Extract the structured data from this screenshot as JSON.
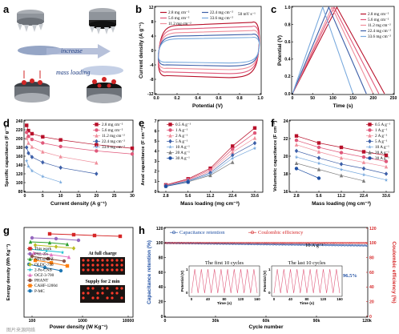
{
  "panels": {
    "a": "a",
    "b": "b",
    "c": "c",
    "d": "d",
    "e": "e",
    "f": "f",
    "g": "g",
    "h": "h"
  },
  "schematic": {
    "increase": "increase",
    "mass_loading": "mass loading"
  },
  "inset_g": {
    "full_charge": "At full charge",
    "supply": "Supply for 2 min"
  },
  "watermark": "图片来源网络",
  "colors": {
    "c1": "#b8102a",
    "c2": "#e0587a",
    "c3": "#ef8e9b",
    "c4": "#3d5fa8",
    "c5": "#78a9dd",
    "c6": "#7d7d7d",
    "c7": "#1f4fa3"
  },
  "chart_data": [
    {
      "panel": "b",
      "type": "line",
      "xlabel": "Potential (V)",
      "ylabel": "Current density (A g⁻¹)",
      "xlim": [
        0,
        1
      ],
      "ylim": [
        -12,
        12
      ],
      "xticks": [
        "0.0",
        "0.2",
        "0.4",
        "0.6",
        "0.8",
        "1.0"
      ],
      "yticks": [
        "-12",
        "-8",
        "-4",
        "0",
        "4",
        "8",
        "12"
      ],
      "annotation": "50 mV s⁻¹",
      "series": [
        {
          "name": "2.8 mg cm⁻²",
          "color": "#b8102a",
          "half_height": 8.2
        },
        {
          "name": "5.6 mg cm⁻²",
          "color": "#e0587a",
          "half_height": 7.0
        },
        {
          "name": "11.2 mg cm⁻²",
          "color": "#ef8e9b",
          "half_height": 5.8
        },
        {
          "name": "22.4 mg cm⁻²",
          "color": "#3d5fa8",
          "half_height": 4.7
        },
        {
          "name": "33.6 mg cm⁻²",
          "color": "#78a9dd",
          "half_height": 3.8
        }
      ]
    },
    {
      "panel": "c",
      "type": "line",
      "xlabel": "Time (s)",
      "ylabel": "Potential (V)",
      "xlim": [
        0,
        250
      ],
      "ylim": [
        0,
        1.0
      ],
      "xticks": [
        "0",
        "50",
        "100",
        "150",
        "200",
        "250"
      ],
      "yticks": [
        "0.0",
        "0.2",
        "0.4",
        "0.6",
        "0.8",
        "1.0"
      ],
      "series": [
        {
          "name": "2.8 mg cm⁻²",
          "color": "#b8102a",
          "peak": 110,
          "end": 228
        },
        {
          "name": "5.6 mg cm⁻²",
          "color": "#e0587a",
          "peak": 103,
          "end": 214
        },
        {
          "name": "11.2 mg cm⁻²",
          "color": "#ef8e9b",
          "peak": 98,
          "end": 200
        },
        {
          "name": "22.4 mg cm⁻²",
          "color": "#3d5fa8",
          "peak": 90,
          "end": 183
        },
        {
          "name": "33.6 mg cm⁻²",
          "color": "#78a9dd",
          "peak": 75,
          "end": 150
        }
      ]
    },
    {
      "panel": "d",
      "type": "line",
      "xlabel": "Current density (A g⁻¹)",
      "ylabel": "Specific capacitance (F g⁻¹)",
      "xlim": [
        0,
        30
      ],
      "ylim": [
        80,
        240
      ],
      "xticks": [
        "0",
        "5",
        "10",
        "15",
        "20",
        "25",
        "30"
      ],
      "yticks": [
        "80",
        "100",
        "120",
        "140",
        "160",
        "180",
        "200",
        "220",
        "240"
      ],
      "series": [
        {
          "name": "2.8 mg cm⁻²",
          "color": "#b8102a",
          "x": [
            0.5,
            1,
            2,
            5,
            10,
            20,
            30
          ],
          "values": [
            230,
            218,
            211,
            204,
            197,
            186,
            178
          ]
        },
        {
          "name": "5.6 mg cm⁻²",
          "color": "#e0587a",
          "x": [
            0.5,
            1,
            2,
            5,
            10,
            20,
            30
          ],
          "values": [
            214,
            205,
            198,
            190,
            182,
            172,
            165
          ]
        },
        {
          "name": "11.2 mg cm⁻²",
          "color": "#ef8e9b",
          "x": [
            0.5,
            1,
            2,
            5,
            10,
            20
          ],
          "values": [
            201,
            190,
            181,
            170,
            159,
            145
          ]
        },
        {
          "name": "22.4 mg cm⁻²",
          "color": "#3d5fa8",
          "x": [
            0.5,
            1,
            2,
            5,
            10,
            20
          ],
          "values": [
            180,
            167,
            158,
            146,
            134,
            120
          ]
        },
        {
          "name": "33.6 mg cm⁻²",
          "color": "#78a9dd",
          "x": [
            0.5,
            1,
            2,
            5,
            10
          ],
          "values": [
            150,
            137,
            127,
            114,
            101
          ]
        }
      ]
    },
    {
      "panel": "e",
      "type": "line",
      "xlabel": "Mass loading (mg cm⁻²)",
      "ylabel": "Areal capacitance (F cm⁻²)",
      "categories": [
        "2.8",
        "5.6",
        "11.2",
        "22.4",
        "33.6"
      ],
      "ylim": [
        0,
        7
      ],
      "yticks": [
        "0",
        "1",
        "2",
        "3",
        "4",
        "5",
        "6",
        "7"
      ],
      "series": [
        {
          "name": "0.5 A g⁻¹",
          "color": "#b8102a",
          "values": [
            0.65,
            1.25,
            2.3,
            4.5,
            6.3
          ]
        },
        {
          "name": "1 A g⁻¹",
          "color": "#e0587a",
          "values": [
            0.61,
            1.18,
            2.15,
            4.2,
            5.8
          ]
        },
        {
          "name": "2 A g⁻¹",
          "color": "#ef8e9b",
          "values": [
            0.59,
            1.12,
            2.0,
            3.9,
            5.3
          ]
        },
        {
          "name": "5 A g⁻¹",
          "color": "#3d5fa8",
          "values": [
            0.57,
            1.05,
            1.85,
            3.6,
            4.8
          ]
        },
        {
          "name": "10 A g⁻¹",
          "color": "#78a9dd",
          "values": [
            0.55,
            1.0,
            1.7,
            3.3,
            4.3
          ]
        },
        {
          "name": "20 A g⁻¹",
          "color": "#7d7d7d",
          "values": [
            0.52,
            0.95,
            1.6,
            2.9,
            null
          ]
        },
        {
          "name": "30 A g⁻¹",
          "color": "#1f4fa3",
          "values": [
            0.5,
            0.92,
            null,
            null,
            null
          ]
        }
      ]
    },
    {
      "panel": "f",
      "type": "line",
      "xlabel": "Mass loading (mg cm⁻²)",
      "ylabel": "Volumetric capacitance (F cm⁻³)",
      "categories": [
        "2.8",
        "5.6",
        "11.2",
        "22.4",
        "33.6"
      ],
      "ylim": [
        16,
        24
      ],
      "yticks": [
        "16",
        "18",
        "20",
        "22",
        "24"
      ],
      "series": [
        {
          "name": "0.5 A g⁻¹",
          "color": "#b8102a",
          "values": [
            22.3,
            21.5,
            21.0,
            20.5,
            20.1
          ]
        },
        {
          "name": "1 A g⁻¹",
          "color": "#e0587a",
          "values": [
            21.8,
            21.0,
            20.4,
            19.9,
            19.4
          ]
        },
        {
          "name": "2 A g⁻¹",
          "color": "#ef8e9b",
          "values": [
            21.3,
            20.5,
            19.8,
            19.3,
            18.8
          ]
        },
        {
          "name": "5 A g⁻¹",
          "color": "#3d5fa8",
          "values": [
            20.6,
            19.8,
            19.1,
            18.6,
            18.0
          ]
        },
        {
          "name": "10 A g⁻¹",
          "color": "#78a9dd",
          "values": [
            19.9,
            19.2,
            18.5,
            17.9,
            17.3
          ]
        },
        {
          "name": "20 A g⁻¹",
          "color": "#7d7d7d",
          "values": [
            19.2,
            18.5,
            17.8,
            17.2,
            null
          ]
        },
        {
          "name": "30 A g⁻¹",
          "color": "#1f4fa3",
          "values": [
            18.6,
            17.5,
            null,
            null,
            null
          ]
        }
      ]
    },
    {
      "panel": "g",
      "type": "line",
      "xlabel": "Power density (W Kg⁻¹)",
      "ylabel": "Energy density (Wh Kg⁻¹)",
      "xscale": "log",
      "xticks": [
        "100",
        "1000",
        "10000"
      ],
      "series": [
        {
          "name": "This work",
          "color": "#d62728"
        },
        {
          "name": "PAL-Zn",
          "color": "#9467bd"
        },
        {
          "name": "NPC@PPZ",
          "color": "#2ca02c"
        },
        {
          "name": "OLDC-750",
          "color": "#bcbd22"
        },
        {
          "name": "2-Fe-CNB",
          "color": "#17becf"
        },
        {
          "name": "OCZ-3-700",
          "color": "#e377c2"
        },
        {
          "name": "PHANT",
          "color": "#8c564b"
        },
        {
          "name": "CAHF-1200d",
          "color": "#ff7f0e"
        },
        {
          "name": "P-MC",
          "color": "#1f77b4"
        }
      ]
    },
    {
      "panel": "h",
      "type": "scatter",
      "xlabel": "Cycle number",
      "ylabel": "Capacitance retention (%)",
      "y2label": "Coulombic efficiency (%)",
      "xlim": [
        0,
        120000
      ],
      "ylim": [
        0,
        120
      ],
      "xticks": [
        "0",
        "30k",
        "60k",
        "90k",
        "120k"
      ],
      "yticks": [
        "0",
        "20",
        "40",
        "60",
        "80",
        "100",
        "120"
      ],
      "y2ticks": [
        "0",
        "20",
        "40",
        "60",
        "80",
        "100",
        "120"
      ],
      "series": [
        {
          "name": "Capacitance retention",
          "color": "#1f4fa3",
          "start": 100,
          "end": 96.5
        },
        {
          "name": "Coulombic efficiency",
          "color": "#d62728",
          "value": 100
        }
      ],
      "annotations": [
        "10 A g⁻¹",
        "96.5%"
      ],
      "insets": [
        {
          "title": "The first 10 cycles",
          "xlabel": "Time (s)",
          "ylabel": "Potential (V)",
          "xticks": [
            "0",
            "40",
            "80",
            "120",
            "160"
          ],
          "yticks": [
            "0",
            "1"
          ]
        },
        {
          "title": "The last 10 cycles",
          "xlabel": "Time (s)",
          "ylabel": "Potential (V)",
          "xticks": [
            "0",
            "40",
            "80",
            "120",
            "160"
          ],
          "yticks": [
            "0",
            "1"
          ]
        }
      ]
    }
  ]
}
